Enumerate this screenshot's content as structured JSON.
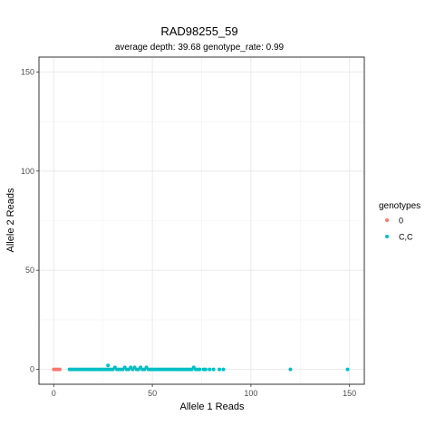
{
  "chart_data": {
    "type": "scatter",
    "title": "RAD98255_59",
    "subtitle": "average depth:  39.68  genotype_rate:  0.99",
    "xlabel": "Allele 1 Reads",
    "ylabel": "Allele 2 Reads",
    "xlim": [
      -7.5,
      157.5
    ],
    "ylim": [
      -7.5,
      157.5
    ],
    "x_ticks": [
      0,
      50,
      100,
      150
    ],
    "y_ticks": [
      0,
      50,
      100,
      150
    ],
    "grid": true,
    "legend": {
      "title": "genotypes",
      "position": "right"
    },
    "series": [
      {
        "name": "0",
        "color": "#F8766D",
        "points": [
          [
            0,
            0
          ],
          [
            1,
            0
          ],
          [
            2,
            0
          ],
          [
            3,
            0
          ]
        ]
      },
      {
        "name": "C,C",
        "color": "#00BFC4",
        "points": [
          [
            8,
            0
          ],
          [
            9,
            0
          ],
          [
            10,
            0
          ],
          [
            11,
            0
          ],
          [
            12,
            0
          ],
          [
            13,
            0
          ],
          [
            14,
            0
          ],
          [
            15,
            0
          ],
          [
            16,
            0
          ],
          [
            17,
            0
          ],
          [
            18,
            0
          ],
          [
            19,
            0
          ],
          [
            20,
            0
          ],
          [
            21,
            0
          ],
          [
            22,
            0
          ],
          [
            23,
            0
          ],
          [
            24,
            0
          ],
          [
            25,
            0
          ],
          [
            26,
            0
          ],
          [
            27,
            0
          ],
          [
            27.5,
            2
          ],
          [
            28,
            0
          ],
          [
            29,
            0
          ],
          [
            30,
            0
          ],
          [
            31,
            1
          ],
          [
            32,
            0
          ],
          [
            33,
            0
          ],
          [
            34,
            0
          ],
          [
            35,
            0
          ],
          [
            36,
            1
          ],
          [
            37,
            0
          ],
          [
            38,
            0
          ],
          [
            39,
            1
          ],
          [
            40,
            0
          ],
          [
            41,
            1
          ],
          [
            42,
            0
          ],
          [
            43,
            0
          ],
          [
            44,
            1
          ],
          [
            45,
            0
          ],
          [
            46,
            0
          ],
          [
            47,
            1
          ],
          [
            48,
            0
          ],
          [
            49,
            0
          ],
          [
            50,
            0
          ],
          [
            51,
            0
          ],
          [
            52,
            0
          ],
          [
            53,
            0
          ],
          [
            54,
            0
          ],
          [
            55,
            0
          ],
          [
            56,
            0
          ],
          [
            57,
            0
          ],
          [
            58,
            0
          ],
          [
            59,
            0
          ],
          [
            60,
            0
          ],
          [
            61,
            0
          ],
          [
            62,
            0
          ],
          [
            63,
            0
          ],
          [
            64,
            0
          ],
          [
            65,
            0
          ],
          [
            66,
            0
          ],
          [
            67,
            0
          ],
          [
            68,
            0
          ],
          [
            69,
            0
          ],
          [
            70,
            0
          ],
          [
            71,
            1
          ],
          [
            72,
            0
          ],
          [
            73,
            0
          ],
          [
            74,
            0
          ],
          [
            76,
            0
          ],
          [
            77,
            0
          ],
          [
            79,
            0
          ],
          [
            81,
            0
          ],
          [
            84,
            0
          ],
          [
            86,
            0
          ],
          [
            120,
            0
          ],
          [
            149,
            0
          ]
        ]
      }
    ]
  }
}
